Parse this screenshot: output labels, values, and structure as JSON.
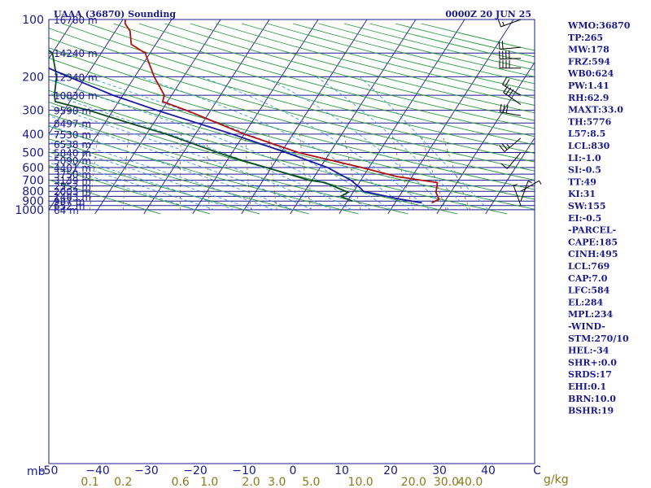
{
  "header": {
    "station": "UAAA (36870) Sounding",
    "time": "0000Z 20 JUN 25"
  },
  "chart_data": {
    "type": "skew-t log-p",
    "pressure_unit_label": "mb",
    "mixing_ratio_unit_label": "g/kg",
    "pressure_levels": [
      100,
      200,
      300,
      400,
      500,
      600,
      700,
      800,
      900,
      1000
    ],
    "pressure_labels": [
      "100",
      "200",
      "300",
      "400",
      "500",
      "600",
      "700",
      "800",
      "900",
      "1000"
    ],
    "height_labels": [
      {
        "p": 100,
        "label": "16780 m"
      },
      {
        "p": 150,
        "label": "14240 m"
      },
      {
        "p": 200,
        "label": "12340 m"
      },
      {
        "p": 250,
        "label": "10830 m"
      },
      {
        "p": 300,
        "label": "9590 m"
      },
      {
        "p": 350,
        "label": "8497 m"
      },
      {
        "p": 400,
        "label": "7530 m"
      },
      {
        "p": 450,
        "label": "6538 m"
      },
      {
        "p": 500,
        "label": "5840 m"
      },
      {
        "p": 550,
        "label": "5090 m"
      },
      {
        "p": 600,
        "label": "4401 m"
      },
      {
        "p": 650,
        "label": "3750 m"
      },
      {
        "p": 700,
        "label": "3139 m"
      },
      {
        "p": 750,
        "label": "2552 m"
      },
      {
        "p": 800,
        "label": "2003 m"
      },
      {
        "p": 850,
        "label": "1483 m"
      },
      {
        "p": 900,
        "label": "987 m"
      },
      {
        "p": 950,
        "label": "652 m"
      },
      {
        "p": 1000,
        "label": "64 m"
      }
    ],
    "temperature_ticks": [
      -50,
      -40,
      -30,
      -20,
      -10,
      0,
      10,
      20,
      30,
      40,
      50
    ],
    "temperature_tick_labels": [
      "-50",
      "−40",
      "−30",
      "−20",
      "−10",
      "0",
      "10",
      "20",
      "30",
      "40",
      "C"
    ],
    "mixing_ratio_ticks": [
      0.1,
      0.2,
      0.6,
      1.0,
      2.0,
      3.0,
      5.0,
      10.0,
      20.0,
      30.0,
      40.0
    ],
    "mixing_ratio_labels": [
      "0.1",
      "0.2",
      "0.6",
      "1.0",
      "2.0",
      "3.0",
      "5.0",
      "10.0",
      "20.0",
      "30.0",
      "40.0"
    ],
    "series": [
      {
        "name": "",
        "kind": "temperature",
        "color": "#b01010",
        "points": [
          {
            "p": 920,
            "t": 27.5
          },
          {
            "p": 880,
            "t": 28.5
          },
          {
            "p": 810,
            "t": 27.0
          },
          {
            "p": 720,
            "t": 26.0
          },
          {
            "p": 670,
            "t": 17.0
          },
          {
            "p": 600,
            "t": 8.5
          },
          {
            "p": 500,
            "t": -6.5
          },
          {
            "p": 400,
            "t": -20.0
          },
          {
            "p": 300,
            "t": -35.0
          },
          {
            "p": 270,
            "t": -41.0
          },
          {
            "p": 250,
            "t": -41.5
          },
          {
            "p": 200,
            "t": -46.0
          },
          {
            "p": 150,
            "t": -51.0
          },
          {
            "p": 135,
            "t": -55.0
          },
          {
            "p": 115,
            "t": -57.0
          },
          {
            "p": 105,
            "t": -59.0
          },
          {
            "p": 100,
            "t": -59.5
          }
        ]
      },
      {
        "name": "",
        "kind": "dewpoint",
        "color": "#0b4d1c",
        "points": [
          {
            "p": 900,
            "t": 11.0
          },
          {
            "p": 850,
            "t": 8.0
          },
          {
            "p": 810,
            "t": 9.0
          },
          {
            "p": 720,
            "t": 3.0
          },
          {
            "p": 700,
            "t": -0.5
          },
          {
            "p": 600,
            "t": -11.0
          },
          {
            "p": 550,
            "t": -17.0
          },
          {
            "p": 500,
            "t": -23.0
          },
          {
            "p": 400,
            "t": -36.0
          },
          {
            "p": 350,
            "t": -45.0
          },
          {
            "p": 300,
            "t": -55.0
          },
          {
            "p": 270,
            "t": -63.0
          },
          {
            "p": 250,
            "t": -64.0
          },
          {
            "p": 200,
            "t": -66.0
          },
          {
            "p": 150,
            "t": -70.0
          },
          {
            "p": 130,
            "t": -75.0
          },
          {
            "p": 115,
            "t": -75.5
          },
          {
            "p": 100,
            "t": -76.0
          }
        ]
      },
      {
        "name": "",
        "kind": "parcel",
        "color": "#1a1aa0",
        "points": [
          {
            "p": 920,
            "t": 25.5
          },
          {
            "p": 880,
            "t": 20.5
          },
          {
            "p": 800,
            "t": 12.0
          },
          {
            "p": 770,
            "t": 11.0
          },
          {
            "p": 700,
            "t": 8.0
          },
          {
            "p": 600,
            "t": 1.5
          },
          {
            "p": 500,
            "t": -9.0
          },
          {
            "p": 400,
            "t": -22.5
          },
          {
            "p": 300,
            "t": -41.0
          },
          {
            "p": 250,
            "t": -52.0
          },
          {
            "p": 200,
            "t": -63.5
          },
          {
            "p": 150,
            "t": -78.0
          },
          {
            "p": 120,
            "t": -88.5
          },
          {
            "p": 110,
            "t": -92.5
          }
        ]
      }
    ],
    "wind_barbs": [
      {
        "p": 100,
        "dir": 250,
        "kt": 15
      },
      {
        "p": 140,
        "dir": 265,
        "kt": 20
      },
      {
        "p": 160,
        "dir": 268,
        "kt": 40
      },
      {
        "p": 180,
        "dir": 270,
        "kt": 40
      },
      {
        "p": 250,
        "dir": 300,
        "kt": 20
      },
      {
        "p": 280,
        "dir": 305,
        "kt": 30
      },
      {
        "p": 320,
        "dir": 280,
        "kt": 30
      },
      {
        "p": 420,
        "dir": 230,
        "kt": 25
      },
      {
        "p": 500,
        "dir": 220,
        "kt": 10
      },
      {
        "p": 800,
        "dir": 60,
        "kt": 5
      },
      {
        "p": 900,
        "dir": 20,
        "kt": 5
      },
      {
        "p": 950,
        "dir": 340,
        "kt": 5
      }
    ]
  },
  "indices": [
    "WMO:36870",
    "TP:265",
    "MW:178",
    "FRZ:594",
    "WB0:624",
    "PW:1.41",
    "RH:62.9",
    "MAXT:33.0",
    "TH:5776",
    "L57:8.5",
    "LCL:830",
    "LI:-1.0",
    "SI:-0.5",
    "TT:49",
    "KI:31",
    "SW:155",
    "EI:-0.5",
    "-PARCEL-",
    "CAPE:185",
    "CINH:495",
    "LCL:769",
    "CAP:7.0",
    "LFC:584",
    "EL:284",
    "MPL:234",
    "-WIND-",
    "STM:270/10",
    "HEL:-34",
    "SHR+:0.0",
    "SRDS:17",
    "EHI:0.1",
    "BRN:10.0",
    "BSHR:19"
  ],
  "colors": {
    "isobar": "#1a1a8c",
    "isotherm": "#1a1a8c",
    "dry_adiabat": "#2a9a3a",
    "moist_adiabat": "#3c9ad8",
    "mixing_ratio": "#7a6a1a",
    "temperature": "#b01010",
    "dewpoint": "#0b4d1c",
    "parcel": "#1a1aa0",
    "text": "#1a1a8c"
  }
}
